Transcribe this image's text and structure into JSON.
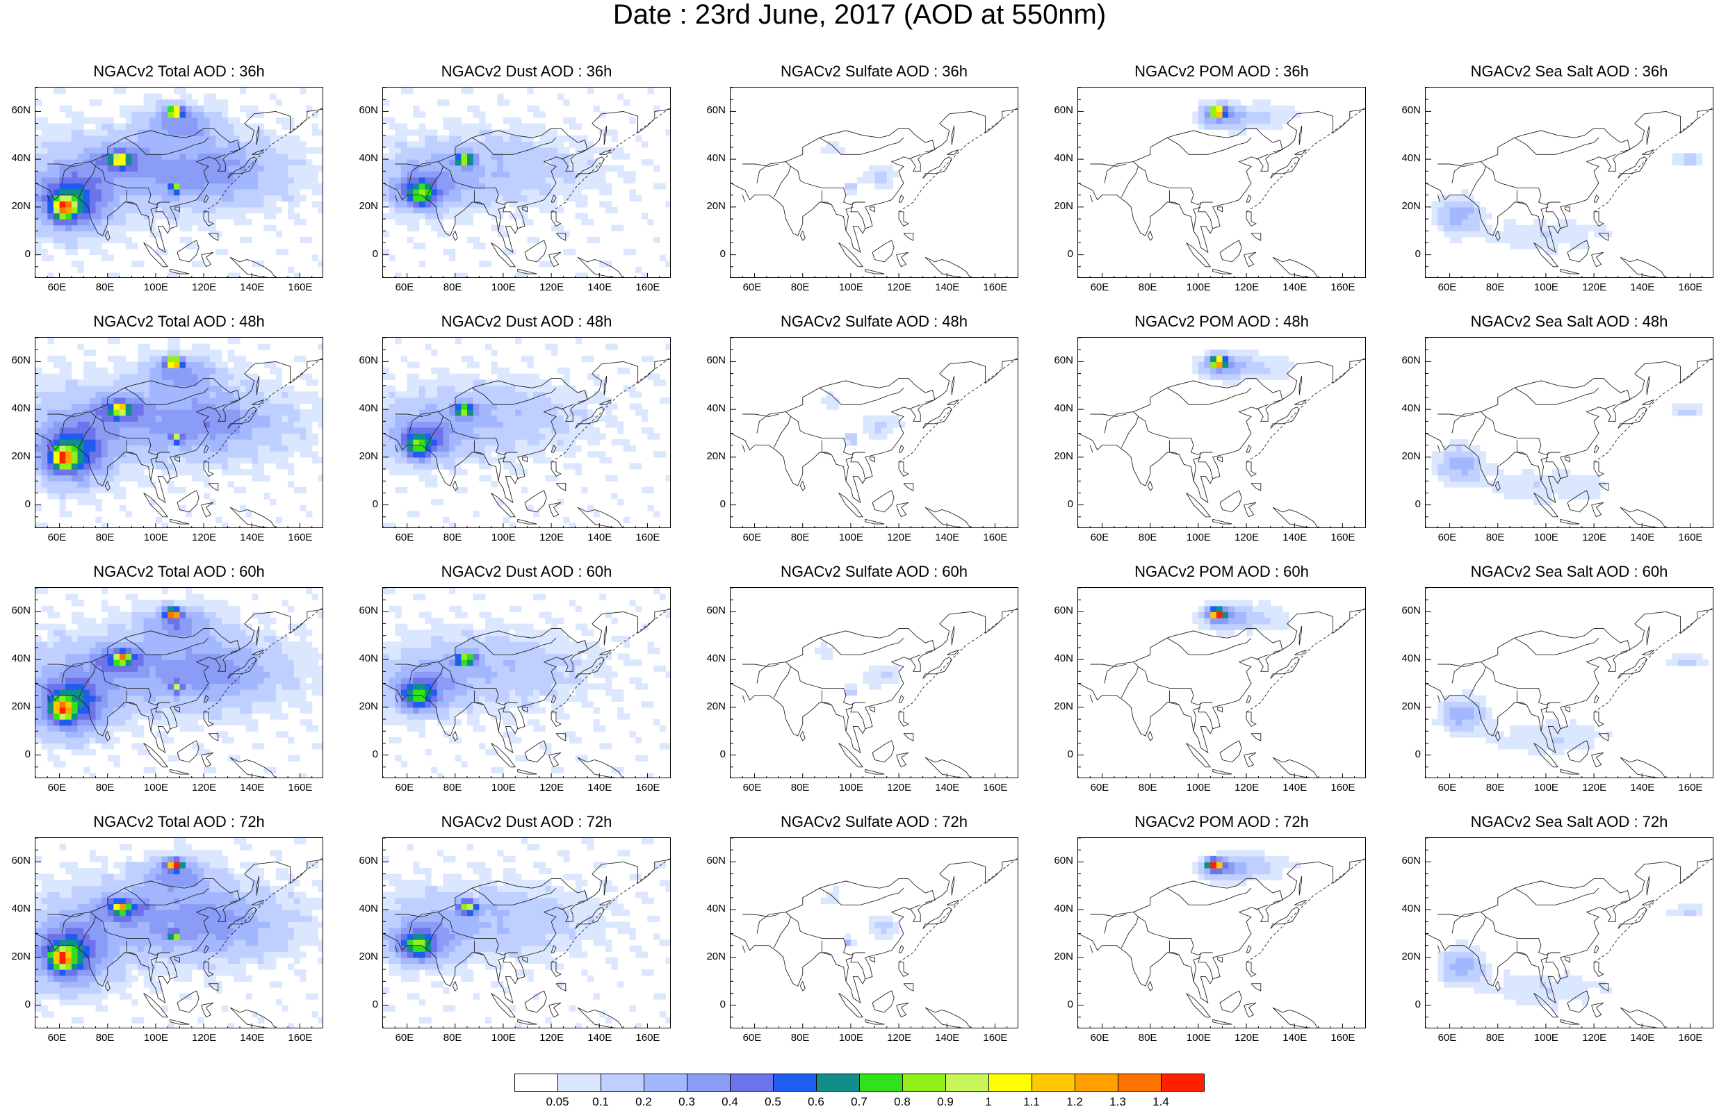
{
  "title": "Date : 23rd June, 2017 (AOD at 550nm)",
  "x_ticks": [
    "60E",
    "80E",
    "100E",
    "120E",
    "140E",
    "160E"
  ],
  "y_ticks": [
    "60N",
    "40N",
    "20N",
    "0"
  ],
  "panels": [
    {
      "title": "NGACv2 Total AOD : 36h",
      "species": "total",
      "lead": 36
    },
    {
      "title": "NGACv2 Dust AOD : 36h",
      "species": "dust",
      "lead": 36
    },
    {
      "title": "NGACv2 Sulfate AOD : 36h",
      "species": "sulfate",
      "lead": 36
    },
    {
      "title": "NGACv2 POM AOD : 36h",
      "species": "pom",
      "lead": 36
    },
    {
      "title": "NGACv2 Sea Salt AOD : 36h",
      "species": "seasalt",
      "lead": 36
    },
    {
      "title": "NGACv2 Total AOD : 48h",
      "species": "total",
      "lead": 48
    },
    {
      "title": "NGACv2 Dust AOD : 48h",
      "species": "dust",
      "lead": 48
    },
    {
      "title": "NGACv2 Sulfate AOD : 48h",
      "species": "sulfate",
      "lead": 48
    },
    {
      "title": "NGACv2 POM AOD : 48h",
      "species": "pom",
      "lead": 48
    },
    {
      "title": "NGACv2 Sea Salt AOD : 48h",
      "species": "seasalt",
      "lead": 48
    },
    {
      "title": "NGACv2 Total AOD : 60h",
      "species": "total",
      "lead": 60
    },
    {
      "title": "NGACv2 Dust AOD : 60h",
      "species": "dust",
      "lead": 60
    },
    {
      "title": "NGACv2 Sulfate AOD : 60h",
      "species": "sulfate",
      "lead": 60
    },
    {
      "title": "NGACv2 POM AOD : 60h",
      "species": "pom",
      "lead": 60
    },
    {
      "title": "NGACv2 Sea Salt AOD : 60h",
      "species": "seasalt",
      "lead": 60
    },
    {
      "title": "NGACv2 Total AOD : 72h",
      "species": "total",
      "lead": 72
    },
    {
      "title": "NGACv2 Dust AOD : 72h",
      "species": "dust",
      "lead": 72
    },
    {
      "title": "NGACv2 Sulfate AOD : 72h",
      "species": "sulfate",
      "lead": 72
    },
    {
      "title": "NGACv2 POM AOD : 72h",
      "species": "pom",
      "lead": 72
    },
    {
      "title": "NGACv2 Sea Salt  AOD : 72h",
      "species": "seasalt",
      "lead": 72
    }
  ],
  "map_extent": {
    "lon": [
      50,
      170
    ],
    "lat": [
      -10,
      70
    ]
  },
  "colorbar": {
    "labels": [
      "0.05",
      "0.1",
      "0.2",
      "0.3",
      "0.4",
      "0.5",
      "0.6",
      "0.7",
      "0.8",
      "0.9",
      "1",
      "1.1",
      "1.2",
      "1.3",
      "1.4"
    ],
    "colors": [
      "#ffffff",
      "#dbe6ff",
      "#bfcfff",
      "#a3b7ff",
      "#8a9cf5",
      "#6d73e8",
      "#1f5cf0",
      "#118e8a",
      "#33e01c",
      "#90f018",
      "#c8f55a",
      "#ffff00",
      "#ffc800",
      "#ffa000",
      "#ff7400",
      "#ff2000"
    ]
  },
  "aod_fields": {
    "total": [
      {
        "lon": 95,
        "lat": 35,
        "sx": 50,
        "sy": 16,
        "v": 0.22
      },
      {
        "lon": 65,
        "lat": 22,
        "sx": 14,
        "sy": 12,
        "v": 0.55
      },
      {
        "lon": 62,
        "lat": 20,
        "sx": 4,
        "sy": 4,
        "v": 0.95
      },
      {
        "lon": 85,
        "lat": 40,
        "sx": 10,
        "sy": 5,
        "v": 0.35
      },
      {
        "lon": 85,
        "lat": 40,
        "sx": 3,
        "sy": 2,
        "v": 0.8
      },
      {
        "lon": 110,
        "lat": 55,
        "sx": 14,
        "sy": 7,
        "v": 0.3
      },
      {
        "lon": 108,
        "lat": 60,
        "sx": 3,
        "sy": 2,
        "v": 1.3
      },
      {
        "lon": 125,
        "lat": 35,
        "sx": 25,
        "sy": 12,
        "v": 0.18
      },
      {
        "lon": 108,
        "lat": 28,
        "sx": 2,
        "sy": 2,
        "v": 0.7
      }
    ],
    "dust": [
      {
        "lon": 90,
        "lat": 36,
        "sx": 40,
        "sy": 14,
        "v": 0.18
      },
      {
        "lon": 67,
        "lat": 28,
        "sx": 14,
        "sy": 9,
        "v": 0.32
      },
      {
        "lon": 65,
        "lat": 25,
        "sx": 6,
        "sy": 5,
        "v": 0.45
      },
      {
        "lon": 84,
        "lat": 40,
        "sx": 4,
        "sy": 2.5,
        "v": 0.8
      }
    ],
    "sulfate": [
      {
        "lon": 112,
        "lat": 33,
        "sx": 8,
        "sy": 5,
        "v": 0.12
      },
      {
        "lon": 100,
        "lat": 28,
        "sx": 2,
        "sy": 2,
        "v": 0.25
      },
      {
        "lon": 92,
        "lat": 45,
        "sx": 6,
        "sy": 5,
        "v": 0.07
      }
    ],
    "pom": [
      {
        "lon": 110,
        "lat": 58,
        "sx": 10,
        "sy": 5,
        "v": 0.3
      },
      {
        "lon": 108,
        "lat": 60,
        "sx": 3,
        "sy": 2,
        "v": 1.3
      },
      {
        "lon": 128,
        "lat": 58,
        "sx": 14,
        "sy": 6,
        "v": 0.1
      }
    ],
    "seasalt": [
      {
        "lon": 64,
        "lat": 17,
        "sx": 9,
        "sy": 7,
        "v": 0.25
      },
      {
        "lon": 100,
        "lat": 8,
        "sx": 30,
        "sy": 8,
        "v": 0.09
      },
      {
        "lon": 160,
        "lat": 40,
        "sx": 8,
        "sy": 3,
        "v": 0.12
      }
    ]
  }
}
